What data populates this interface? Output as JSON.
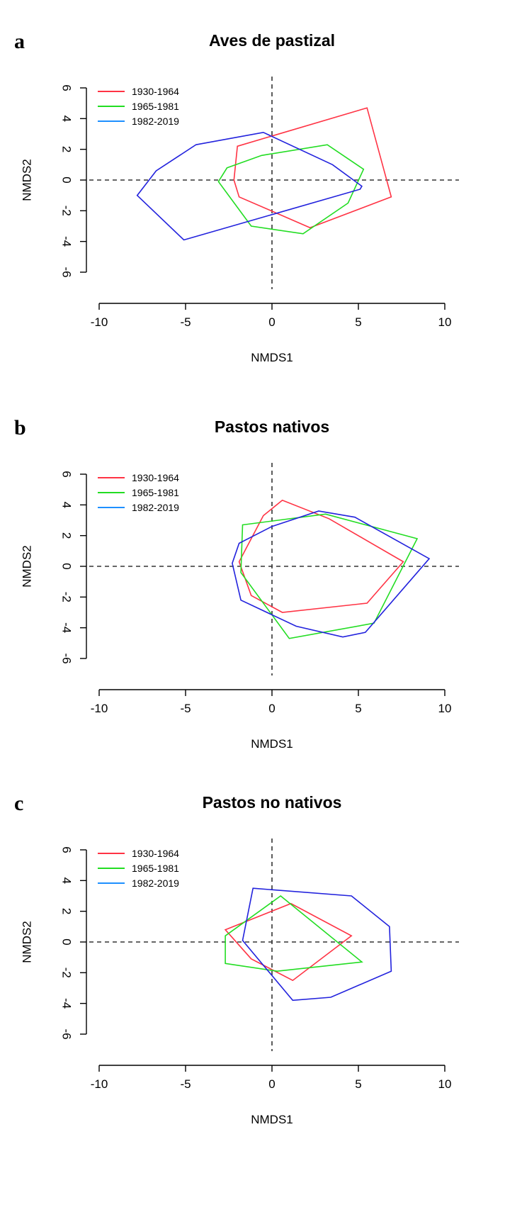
{
  "colors": {
    "red": "#ff3344",
    "green": "#22dd22",
    "blue": "#2222dd",
    "legend_blue": "#1e90ff"
  },
  "chart_data": [
    {
      "type": "scatter",
      "panel_label": "a",
      "title": "Aves de pastizal",
      "xlabel": "NMDS1",
      "ylabel": "NMDS2",
      "xlim": [
        -10,
        10
      ],
      "ylim": [
        -6,
        6
      ],
      "xticks": [
        "-10",
        "-5",
        "0",
        "5",
        "10"
      ],
      "yticks": [
        "-6",
        "-4",
        "-2",
        "0",
        "2",
        "4",
        "6"
      ],
      "legend": [
        "1930-1964",
        "1965-1981",
        "1982-2019"
      ],
      "series": [
        {
          "name": "1930-1964",
          "color": "#ff3344",
          "hull": [
            [
              -2,
              2.2
            ],
            [
              5.5,
              4.7
            ],
            [
              6.9,
              -1.1
            ],
            [
              2.2,
              -3.1
            ],
            [
              -1.9,
              -1.1
            ],
            [
              -2.2,
              0
            ]
          ]
        },
        {
          "name": "1965-1981",
          "color": "#22dd22",
          "hull": [
            [
              -2.6,
              0.8
            ],
            [
              -0.6,
              1.6
            ],
            [
              3.2,
              2.3
            ],
            [
              5.3,
              0.7
            ],
            [
              4.4,
              -1.5
            ],
            [
              1.8,
              -3.5
            ],
            [
              -1.2,
              -3
            ],
            [
              -3.1,
              -0.1
            ]
          ]
        },
        {
          "name": "1982-2019",
          "color": "#2222dd",
          "hull": [
            [
              -4.4,
              2.3
            ],
            [
              -0.5,
              3.1
            ],
            [
              3.5,
              1
            ],
            [
              5.2,
              -0.4
            ],
            [
              5.1,
              -0.6
            ],
            [
              -5.1,
              -3.9
            ],
            [
              -7.8,
              -1
            ],
            [
              -6.7,
              0.6
            ]
          ]
        }
      ]
    },
    {
      "type": "scatter",
      "panel_label": "b",
      "title": "Pastos nativos",
      "xlabel": "NMDS1",
      "ylabel": "NMDS2",
      "xlim": [
        -10,
        10
      ],
      "ylim": [
        -6,
        6
      ],
      "xticks": [
        "-10",
        "-5",
        "0",
        "5",
        "10"
      ],
      "yticks": [
        "-6",
        "-4",
        "-2",
        "0",
        "2",
        "4",
        "6"
      ],
      "legend": [
        "1930-1964",
        "1965-1981",
        "1982-2019"
      ],
      "series": [
        {
          "name": "1930-1964",
          "color": "#ff3344",
          "hull": [
            [
              -0.5,
              3.3
            ],
            [
              0.6,
              4.3
            ],
            [
              3.3,
              3.1
            ],
            [
              7.6,
              0.3
            ],
            [
              5.5,
              -2.4
            ],
            [
              0.6,
              -3
            ],
            [
              -1.2,
              -1.9
            ],
            [
              -1.9,
              0.3
            ]
          ]
        },
        {
          "name": "1965-1981",
          "color": "#22dd22",
          "hull": [
            [
              -1.7,
              2.7
            ],
            [
              3.1,
              3.4
            ],
            [
              8.4,
              1.8
            ],
            [
              5.9,
              -3.7
            ],
            [
              1,
              -4.7
            ],
            [
              -1.8,
              -0.4
            ]
          ]
        },
        {
          "name": "1982-2019",
          "color": "#2222dd",
          "hull": [
            [
              -1.9,
              1.5
            ],
            [
              0,
              2.6
            ],
            [
              2.7,
              3.6
            ],
            [
              4.8,
              3.2
            ],
            [
              9.1,
              0.5
            ],
            [
              5.4,
              -4.3
            ],
            [
              4.1,
              -4.6
            ],
            [
              1.4,
              -3.9
            ],
            [
              -1.8,
              -2.2
            ],
            [
              -2.3,
              0.2
            ]
          ]
        }
      ]
    },
    {
      "type": "scatter",
      "panel_label": "c",
      "title": "Pastos no nativos",
      "xlabel": "NMDS1",
      "ylabel": "NMDS2",
      "xlim": [
        -10,
        10
      ],
      "ylim": [
        -6,
        6
      ],
      "xticks": [
        "-10",
        "-5",
        "0",
        "5",
        "10"
      ],
      "yticks": [
        "-6",
        "-4",
        "-2",
        "0",
        "2",
        "4",
        "6"
      ],
      "legend": [
        "1930-1964",
        "1965-1981",
        "1982-2019"
      ],
      "series": [
        {
          "name": "1930-1964",
          "color": "#ff3344",
          "hull": [
            [
              -2.7,
              0.8
            ],
            [
              1.1,
              2.5
            ],
            [
              4.6,
              0.4
            ],
            [
              1.2,
              -2.5
            ],
            [
              -1.2,
              -1.1
            ]
          ]
        },
        {
          "name": "1965-1981",
          "color": "#22dd22",
          "hull": [
            [
              -2.7,
              0.4
            ],
            [
              0.5,
              3
            ],
            [
              5.2,
              -1.3
            ],
            [
              0.3,
              -1.9
            ],
            [
              -2.7,
              -1.4
            ]
          ]
        },
        {
          "name": "1982-2019",
          "color": "#2222dd",
          "hull": [
            [
              -1.1,
              3.5
            ],
            [
              4.6,
              3
            ],
            [
              6.8,
              1
            ],
            [
              6.9,
              -1.9
            ],
            [
              3.4,
              -3.6
            ],
            [
              1.2,
              -3.8
            ],
            [
              -1.7,
              0.1
            ]
          ]
        }
      ]
    }
  ]
}
